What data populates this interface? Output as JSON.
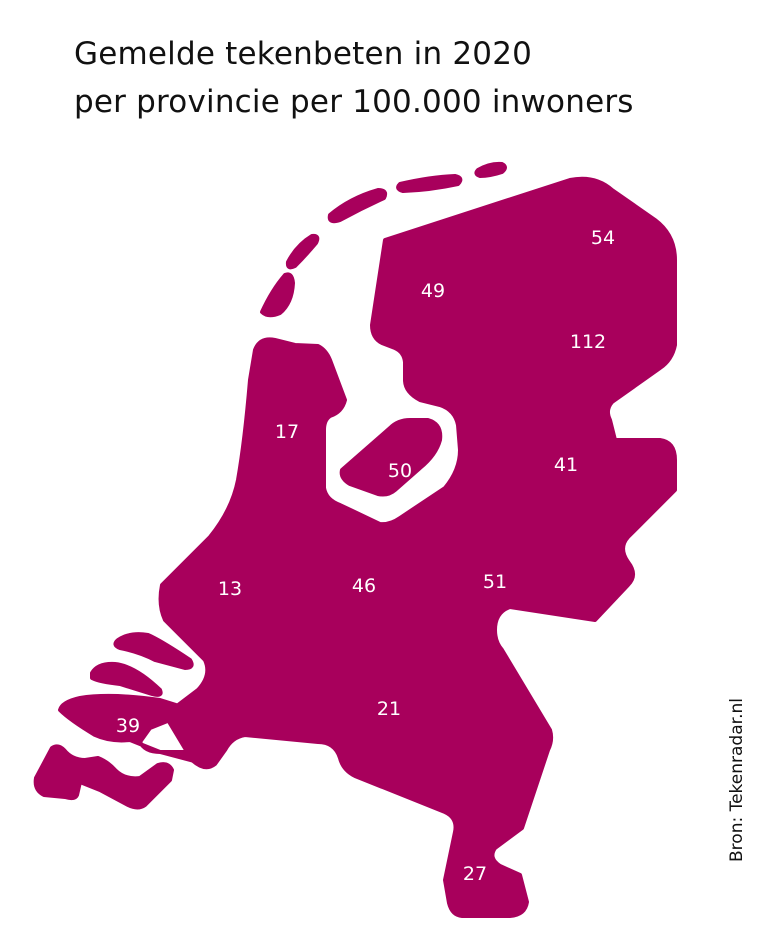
{
  "title": {
    "line1": "Gemelde tekenbeten in 2020",
    "line2": "per provincie per 100.000 inwoners"
  },
  "source": "Bron: Tekenradar.nl",
  "colors": {
    "map_fill": "#A8005C",
    "label_text": "#FFFFFF",
    "background": "#FFFFFF"
  },
  "map_values": [
    "54",
    "49",
    "112",
    "17",
    "50",
    "41",
    "13",
    "46",
    "51",
    "21",
    "39",
    "27"
  ]
}
